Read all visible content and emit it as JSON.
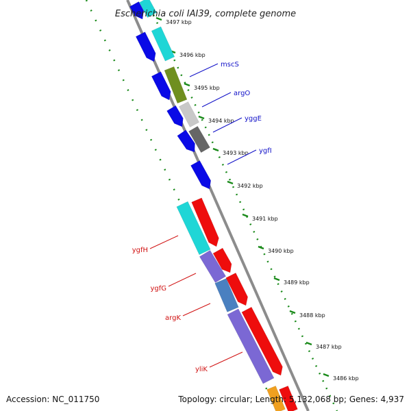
{
  "title": "Escherichia coli IAI39, complete genome",
  "accession": "Accession: NC_011750",
  "summary": "Topology: circular; Length: 5,132,068 bp; Genes: 4,937",
  "tick_labels": [
    "3497 kbp",
    "3496 kbp",
    "3495 kbp",
    "3494 kbp",
    "3493 kbp",
    "3492 kbp",
    "3491 kbp",
    "3490 kbp",
    "3489 kbp",
    "3488 kbp",
    "3487 kbp",
    "3486 kbp"
  ],
  "genes_forward": [
    "mscS",
    "argO",
    "yggE",
    "ygfI"
  ],
  "genes_reverse": [
    "ygfH",
    "ygfG",
    "argK",
    "yliK"
  ],
  "colors": {
    "backbone": "#8c8c8c",
    "tick": "#1a8a1a",
    "forward_cds": "#0a0ae6",
    "reverse_cds": "#ee0d0d",
    "label_forward": "#1010c8",
    "label_reverse": "#d01010",
    "cyan": "#1fd6d6",
    "olive": "#6f8f1f",
    "light_gray": "#c8c8c8",
    "dark_gray": "#666666",
    "purple": "#7b68d4",
    "steel": "#4a80c0",
    "orange": "#f0a020"
  }
}
